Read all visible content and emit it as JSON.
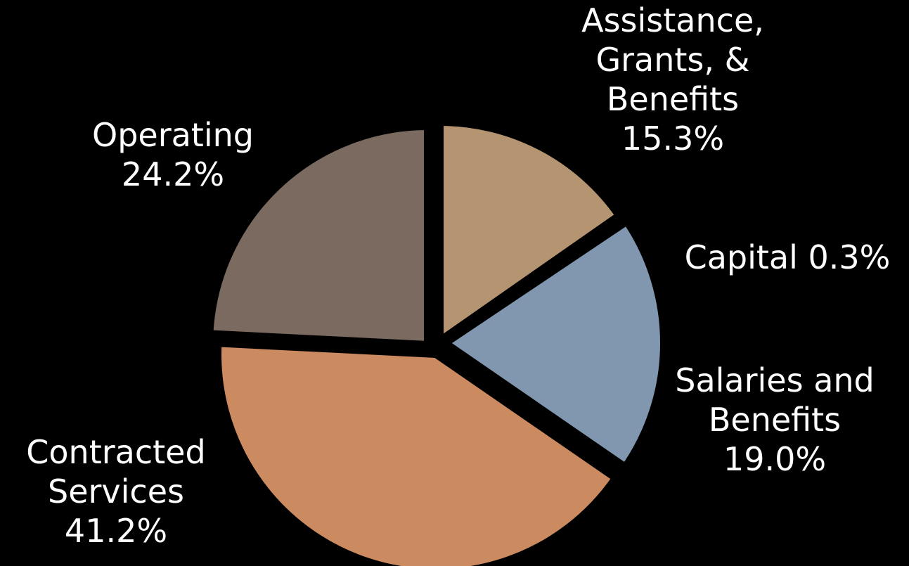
{
  "chart_data": {
    "type": "pie",
    "title": "",
    "start_angle_deg": 0,
    "direction": "clockwise",
    "exploded": true,
    "slices": [
      {
        "key": "assistance",
        "label_lines": [
          "Assistance,",
          "Grants, &",
          "Benefits"
        ],
        "value": 15.3,
        "value_label": "15.3%",
        "color": "#B59472"
      },
      {
        "key": "capital",
        "label_lines": [
          "Capital 0.3%"
        ],
        "value": 0.3,
        "value_label": "",
        "color": "#6E7F8C"
      },
      {
        "key": "salaries",
        "label_lines": [
          "Salaries and",
          "Benefits"
        ],
        "value": 19.0,
        "value_label": "19.0%",
        "color": "#8097AF"
      },
      {
        "key": "contracted",
        "label_lines": [
          "Contracted",
          "Services"
        ],
        "value": 41.2,
        "value_label": "41.2%",
        "color": "#CC8A60"
      },
      {
        "key": "operating",
        "label_lines": [
          "Operating"
        ],
        "value": 24.2,
        "value_label": "24.2%",
        "color": "#7A6A60"
      }
    ]
  }
}
